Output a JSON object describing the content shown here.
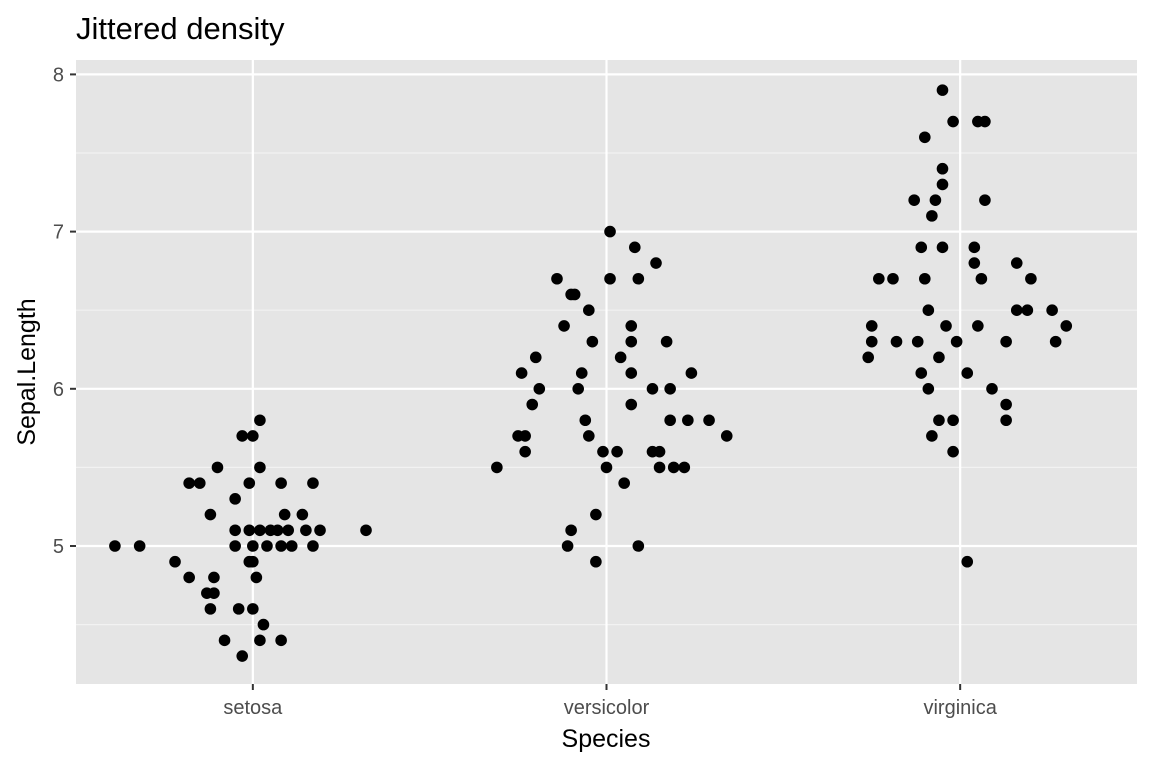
{
  "chart_data": {
    "type": "scatter",
    "title": "Jittered density",
    "xlabel": "Species",
    "ylabel": "Sepal.Length",
    "categories": [
      "setosa",
      "versicolor",
      "virginica"
    ],
    "y_ticks": [
      5,
      6,
      7,
      8
    ],
    "ylim": [
      4.12,
      8.0
    ],
    "grid": true,
    "legend": "none",
    "point_color": "#000000",
    "panel_background": "#e5e5e5",
    "series": [
      {
        "category": "setosa",
        "points": [
          [
            -0.39,
            5.0
          ],
          [
            -0.32,
            5.0
          ],
          [
            -0.22,
            4.9
          ],
          [
            -0.18,
            5.4
          ],
          [
            -0.18,
            4.8
          ],
          [
            -0.15,
            5.4
          ],
          [
            -0.13,
            4.7
          ],
          [
            -0.12,
            5.2
          ],
          [
            -0.12,
            4.6
          ],
          [
            -0.11,
            4.8
          ],
          [
            -0.11,
            4.7
          ],
          [
            -0.1,
            5.5
          ],
          [
            -0.08,
            4.4
          ],
          [
            -0.05,
            5.1
          ],
          [
            -0.05,
            5.3
          ],
          [
            -0.05,
            5.0
          ],
          [
            -0.04,
            4.6
          ],
          [
            -0.03,
            4.3
          ],
          [
            -0.03,
            5.7
          ],
          [
            -0.01,
            5.4
          ],
          [
            -0.01,
            5.1
          ],
          [
            -0.01,
            4.9
          ],
          [
            0.0,
            5.7
          ],
          [
            0.0,
            4.9
          ],
          [
            0.0,
            5.0
          ],
          [
            0.0,
            4.6
          ],
          [
            0.01,
            4.8
          ],
          [
            0.02,
            5.1
          ],
          [
            0.02,
            5.5
          ],
          [
            0.02,
            5.8
          ],
          [
            0.02,
            4.4
          ],
          [
            0.03,
            4.5
          ],
          [
            0.04,
            5.0
          ],
          [
            0.05,
            5.1
          ],
          [
            0.07,
            5.1
          ],
          [
            0.08,
            5.4
          ],
          [
            0.08,
            4.4
          ],
          [
            0.08,
            5.0
          ],
          [
            0.09,
            5.2
          ],
          [
            0.1,
            5.1
          ],
          [
            0.11,
            5.0
          ],
          [
            0.14,
            5.2
          ],
          [
            0.15,
            5.1
          ],
          [
            0.17,
            5.4
          ],
          [
            0.17,
            5.0
          ],
          [
            0.19,
            5.1
          ],
          [
            0.32,
            5.1
          ]
        ]
      },
      {
        "category": "versicolor",
        "points": [
          [
            -0.31,
            5.5
          ],
          [
            -0.25,
            5.7
          ],
          [
            -0.24,
            6.1
          ],
          [
            -0.23,
            5.7
          ],
          [
            -0.23,
            5.6
          ],
          [
            -0.21,
            5.9
          ],
          [
            -0.2,
            6.2
          ],
          [
            -0.19,
            6.0
          ],
          [
            -0.14,
            6.7
          ],
          [
            -0.12,
            6.4
          ],
          [
            -0.11,
            5.0
          ],
          [
            -0.1,
            5.1
          ],
          [
            -0.1,
            6.6
          ],
          [
            -0.09,
            6.6
          ],
          [
            -0.08,
            6.0
          ],
          [
            -0.07,
            6.1
          ],
          [
            -0.06,
            5.8
          ],
          [
            -0.05,
            6.5
          ],
          [
            -0.05,
            5.7
          ],
          [
            -0.04,
            6.3
          ],
          [
            -0.03,
            4.9
          ],
          [
            -0.03,
            5.2
          ],
          [
            -0.01,
            5.6
          ],
          [
            0.0,
            5.5
          ],
          [
            0.01,
            6.7
          ],
          [
            0.01,
            7.0
          ],
          [
            0.03,
            5.6
          ],
          [
            0.04,
            6.2
          ],
          [
            0.05,
            5.4
          ],
          [
            0.07,
            6.3
          ],
          [
            0.07,
            5.9
          ],
          [
            0.07,
            6.1
          ],
          [
            0.07,
            6.4
          ],
          [
            0.08,
            6.9
          ],
          [
            0.09,
            6.7
          ],
          [
            0.09,
            5.0
          ],
          [
            0.13,
            6.0
          ],
          [
            0.13,
            5.6
          ],
          [
            0.14,
            6.8
          ],
          [
            0.15,
            5.5
          ],
          [
            0.15,
            5.6
          ],
          [
            0.17,
            6.3
          ],
          [
            0.18,
            6.0
          ],
          [
            0.18,
            5.8
          ],
          [
            0.19,
            5.5
          ],
          [
            0.22,
            5.5
          ],
          [
            0.23,
            5.8
          ],
          [
            0.24,
            6.1
          ],
          [
            0.29,
            5.8
          ],
          [
            0.34,
            5.7
          ]
        ]
      },
      {
        "category": "virginica",
        "points": [
          [
            -0.26,
            6.2
          ],
          [
            -0.25,
            6.3
          ],
          [
            -0.25,
            6.4
          ],
          [
            -0.23,
            6.7
          ],
          [
            -0.19,
            6.7
          ],
          [
            -0.18,
            6.3
          ],
          [
            -0.13,
            7.2
          ],
          [
            -0.12,
            6.3
          ],
          [
            -0.11,
            6.1
          ],
          [
            -0.11,
            6.9
          ],
          [
            -0.1,
            6.7
          ],
          [
            -0.1,
            7.6
          ],
          [
            -0.09,
            6.5
          ],
          [
            -0.09,
            6.0
          ],
          [
            -0.08,
            7.1
          ],
          [
            -0.08,
            5.7
          ],
          [
            -0.07,
            7.2
          ],
          [
            -0.06,
            5.8
          ],
          [
            -0.06,
            6.2
          ],
          [
            -0.05,
            6.9
          ],
          [
            -0.05,
            7.4
          ],
          [
            -0.05,
            7.3
          ],
          [
            -0.05,
            7.9
          ],
          [
            -0.04,
            6.4
          ],
          [
            -0.02,
            5.6
          ],
          [
            -0.02,
            5.8
          ],
          [
            -0.02,
            7.7
          ],
          [
            -0.01,
            6.3
          ],
          [
            0.02,
            6.1
          ],
          [
            0.02,
            4.9
          ],
          [
            0.04,
            6.9
          ],
          [
            0.04,
            6.8
          ],
          [
            0.05,
            7.7
          ],
          [
            0.05,
            6.4
          ],
          [
            0.06,
            6.7
          ],
          [
            0.07,
            7.2
          ],
          [
            0.07,
            7.7
          ],
          [
            0.09,
            6.0
          ],
          [
            0.13,
            5.8
          ],
          [
            0.13,
            5.9
          ],
          [
            0.13,
            6.3
          ],
          [
            0.16,
            6.5
          ],
          [
            0.16,
            6.8
          ],
          [
            0.19,
            6.5
          ],
          [
            0.2,
            6.7
          ],
          [
            0.26,
            6.5
          ],
          [
            0.27,
            6.3
          ],
          [
            0.3,
            6.4
          ]
        ]
      }
    ]
  }
}
